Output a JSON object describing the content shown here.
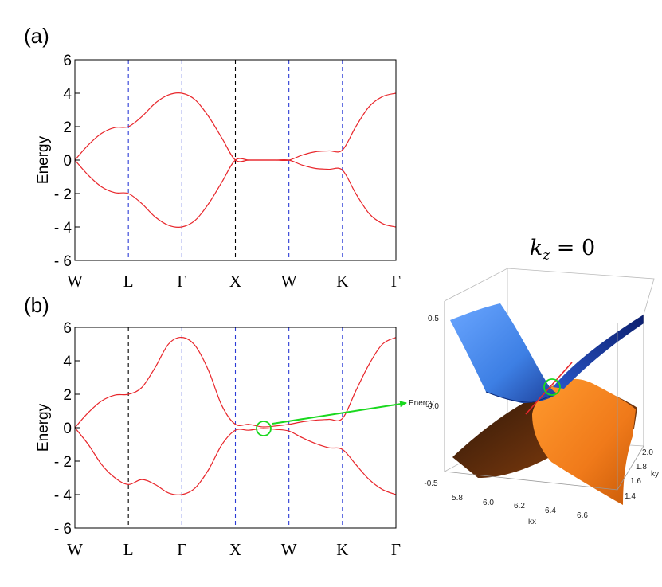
{
  "chart_data": [
    {
      "type": "line",
      "panel_label": "(a)",
      "ylabel": "Energy",
      "ylim": [
        -6,
        6
      ],
      "ytick_labels": [
        "6",
        "4",
        "2",
        "0",
        "- 2",
        "- 4",
        "- 6"
      ],
      "xtick_labels": [
        "W",
        "L",
        "Γ",
        "X",
        "W",
        "K",
        "Γ"
      ],
      "grid": "dashed vertical lines at the symmetry points",
      "line_color": "#e8262b",
      "series": [
        {
          "x": [
            0,
            0.25,
            0.5,
            0.75,
            1,
            1.25,
            1.5,
            1.75,
            2,
            2.25,
            2.5,
            2.75,
            3,
            3.25,
            3.5,
            3.75,
            4,
            4.25,
            4.5,
            4.75,
            5,
            5.25,
            5.5,
            5.75,
            6
          ],
          "y": [
            0,
            0.9,
            1.6,
            1.95,
            2.0,
            2.6,
            3.4,
            3.9,
            4.0,
            3.6,
            2.6,
            1.3,
            0,
            0,
            0,
            0,
            0,
            0.3,
            0.5,
            0.55,
            0.6,
            2.0,
            3.2,
            3.8,
            4.0
          ]
        },
        {
          "x": [
            0,
            0.25,
            0.5,
            0.75,
            1,
            1.25,
            1.5,
            1.75,
            2,
            2.25,
            2.5,
            2.75,
            3,
            3.25,
            3.5,
            3.75,
            4,
            4.25,
            4.5,
            4.75,
            5,
            5.25,
            5.5,
            5.75,
            6
          ],
          "y": [
            0,
            -0.9,
            -1.6,
            -1.95,
            -2.0,
            -2.6,
            -3.4,
            -3.9,
            -4.0,
            -3.6,
            -2.6,
            -1.3,
            0,
            0,
            0,
            0,
            0,
            -0.3,
            -0.5,
            -0.55,
            -0.6,
            -2.0,
            -3.2,
            -3.8,
            -4.0
          ]
        }
      ]
    },
    {
      "type": "line",
      "panel_label": "(b)",
      "ylabel": "Energy",
      "ylim": [
        -6,
        6
      ],
      "ytick_labels": [
        "6",
        "4",
        "2",
        "0",
        "- 2",
        "- 4",
        "- 6"
      ],
      "xtick_labels": [
        "W",
        "L",
        "Γ",
        "X",
        "W",
        "K",
        "Γ"
      ],
      "grid": "dashed vertical lines at the symmetry points",
      "line_color": "#e8262b",
      "series": [
        {
          "x": [
            0,
            0.25,
            0.5,
            0.75,
            1,
            1.25,
            1.5,
            1.75,
            2,
            2.25,
            2.5,
            2.75,
            3,
            3.25,
            3.5,
            3.75,
            4,
            4.25,
            4.5,
            4.75,
            5,
            5.25,
            5.5,
            5.75,
            6
          ],
          "y": [
            0,
            0.9,
            1.6,
            1.95,
            2.0,
            2.4,
            3.6,
            5.0,
            5.4,
            4.9,
            3.4,
            1.3,
            0.2,
            0.2,
            0.05,
            0.1,
            0.2,
            0.35,
            0.45,
            0.5,
            0.55,
            2.2,
            3.8,
            5.0,
            5.4
          ]
        },
        {
          "x": [
            0,
            0.25,
            0.5,
            0.75,
            1,
            1.25,
            1.5,
            1.75,
            2,
            2.25,
            2.5,
            2.75,
            3,
            3.25,
            3.5,
            3.75,
            4,
            4.25,
            4.5,
            4.75,
            5,
            5.25,
            5.5,
            5.75,
            6
          ],
          "y": [
            0,
            -1.0,
            -2.2,
            -3.0,
            -3.4,
            -3.1,
            -3.4,
            -3.9,
            -4.0,
            -3.6,
            -2.5,
            -1.0,
            -0.15,
            -0.15,
            -0.05,
            -0.1,
            -0.2,
            -0.6,
            -0.95,
            -1.2,
            -1.3,
            -2.2,
            -3.1,
            -3.7,
            -4.0
          ]
        }
      ]
    },
    {
      "type": "surface3d",
      "title": "k_z = 0",
      "zlabel": "Energy",
      "xlabel": "kx",
      "ylabel": "ky",
      "z_ticks": [
        "0.5",
        "0.0",
        "-0.5"
      ],
      "x_ticks": [
        "5.8",
        "6.0",
        "6.2",
        "6.4",
        "6.6"
      ],
      "y_ticks": [
        "2.0",
        "1.8",
        "1.6",
        "1.4"
      ],
      "upper_band_color": "#4f8ff0",
      "lower_band_color": "#f07a1a",
      "crossing_marker_color": "#19d81e"
    }
  ],
  "arrow_color": "#19d81e"
}
